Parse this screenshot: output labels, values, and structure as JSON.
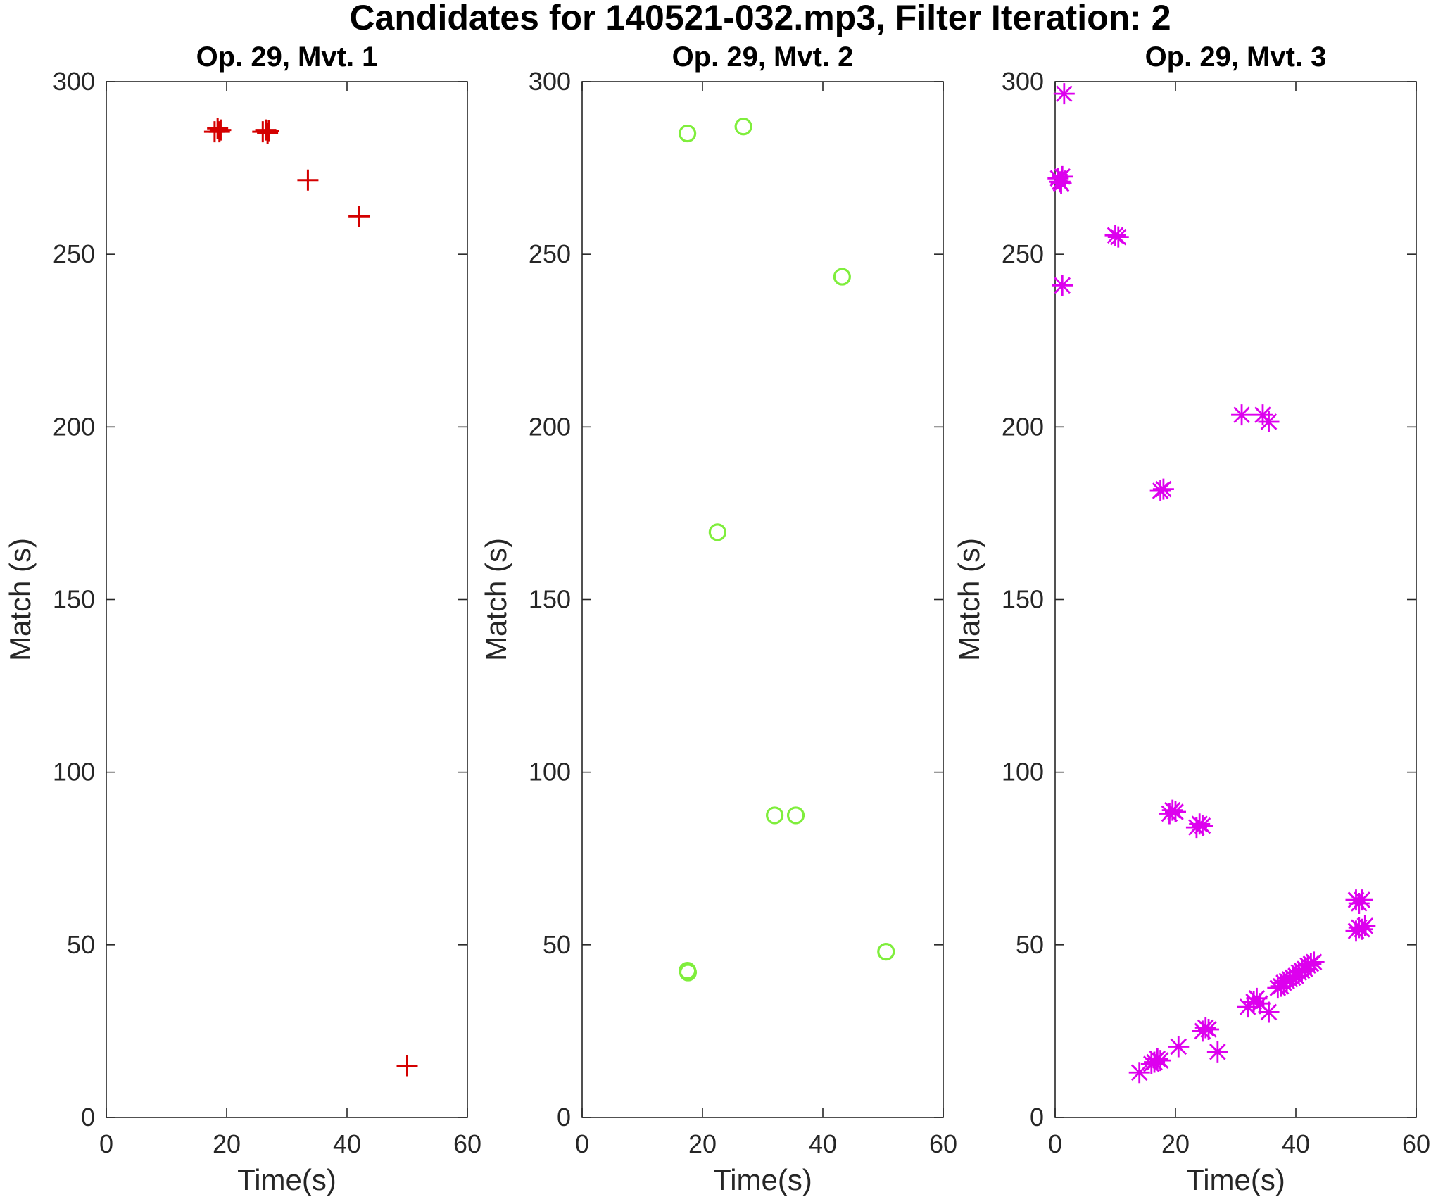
{
  "figure": {
    "title": "Candidates for 140521-032.mp3, Filter Iteration: 2"
  },
  "chart_data": [
    {
      "type": "scatter",
      "title": "Op. 29, Mvt. 1",
      "xlabel": "Time(s)",
      "ylabel": "Match (s)",
      "xlim": [
        0,
        60
      ],
      "ylim": [
        0,
        300
      ],
      "xticks": [
        0,
        20,
        40,
        60
      ],
      "yticks": [
        0,
        50,
        100,
        150,
        200,
        250,
        300
      ],
      "grid": false,
      "marker": "plus",
      "color": "#d40000",
      "series": [
        {
          "x": [
            18.0,
            18.5,
            18.8,
            19.0,
            26.0,
            26.5,
            26.8,
            27.0,
            33.5,
            42.0,
            50.0
          ],
          "y": [
            285.5,
            286.5,
            285.5,
            286.0,
            285.5,
            286.0,
            285.0,
            285.8,
            271.5,
            261.0,
            15.0
          ]
        }
      ]
    },
    {
      "type": "scatter",
      "title": "Op. 29, Mvt. 2",
      "xlabel": "Time(s)",
      "ylabel": "Match (s)",
      "xlim": [
        0,
        60
      ],
      "ylim": [
        0,
        300
      ],
      "xticks": [
        0,
        20,
        40,
        60
      ],
      "yticks": [
        0,
        50,
        100,
        150,
        200,
        250,
        300
      ],
      "grid": false,
      "marker": "circle",
      "color": "#7fee3c",
      "series": [
        {
          "x": [
            17.5,
            26.8,
            43.2,
            22.5,
            32.0,
            35.5,
            17.5,
            17.6,
            50.5
          ],
          "y": [
            285.0,
            287.0,
            243.5,
            169.5,
            87.5,
            87.5,
            42.5,
            42.0,
            48.0
          ]
        }
      ]
    },
    {
      "type": "scatter",
      "title": "Op. 29, Mvt. 3",
      "xlabel": "Time(s)",
      "ylabel": "Match (s)",
      "xlim": [
        0,
        60
      ],
      "ylim": [
        0,
        300
      ],
      "xticks": [
        0,
        20,
        40,
        60
      ],
      "yticks": [
        0,
        50,
        100,
        150,
        200,
        250,
        300
      ],
      "grid": false,
      "marker": "asterisk",
      "color": "#dd00ee",
      "series": [
        {
          "x": [
            1.5,
            0.5,
            0.8,
            1.2,
            1.0,
            10.0,
            10.5,
            1.2,
            31.0,
            34.5,
            35.5,
            17.5,
            18.0,
            19.0,
            19.5,
            20.0,
            23.5,
            24.0,
            24.5,
            50.0,
            50.5,
            51.0,
            50.0,
            50.5,
            51.0,
            51.5,
            14.0,
            16.0,
            16.5,
            17.0,
            17.5,
            20.5,
            24.5,
            25.0,
            25.5,
            27.0,
            32.0,
            33.0,
            33.5,
            34.0,
            35.5,
            37.0,
            37.5,
            38.0,
            38.5,
            39.0,
            39.5,
            40.0,
            40.5,
            41.0,
            41.5,
            42.0,
            42.5,
            43.0
          ],
          "y": [
            296.5,
            272.0,
            271.0,
            272.5,
            270.5,
            255.5,
            255.0,
            241.0,
            203.5,
            203.5,
            201.5,
            181.5,
            182.0,
            88.0,
            89.0,
            88.5,
            84.0,
            85.0,
            84.5,
            63.0,
            62.0,
            63.0,
            54.0,
            55.0,
            54.5,
            55.5,
            13.0,
            15.5,
            16.0,
            17.0,
            16.5,
            20.5,
            25.0,
            26.0,
            25.5,
            19.0,
            32.0,
            33.5,
            34.5,
            33.0,
            30.5,
            37.5,
            38.0,
            39.0,
            39.5,
            40.0,
            40.5,
            41.0,
            42.0,
            42.5,
            43.0,
            44.0,
            44.5,
            45.0
          ]
        }
      ]
    }
  ]
}
